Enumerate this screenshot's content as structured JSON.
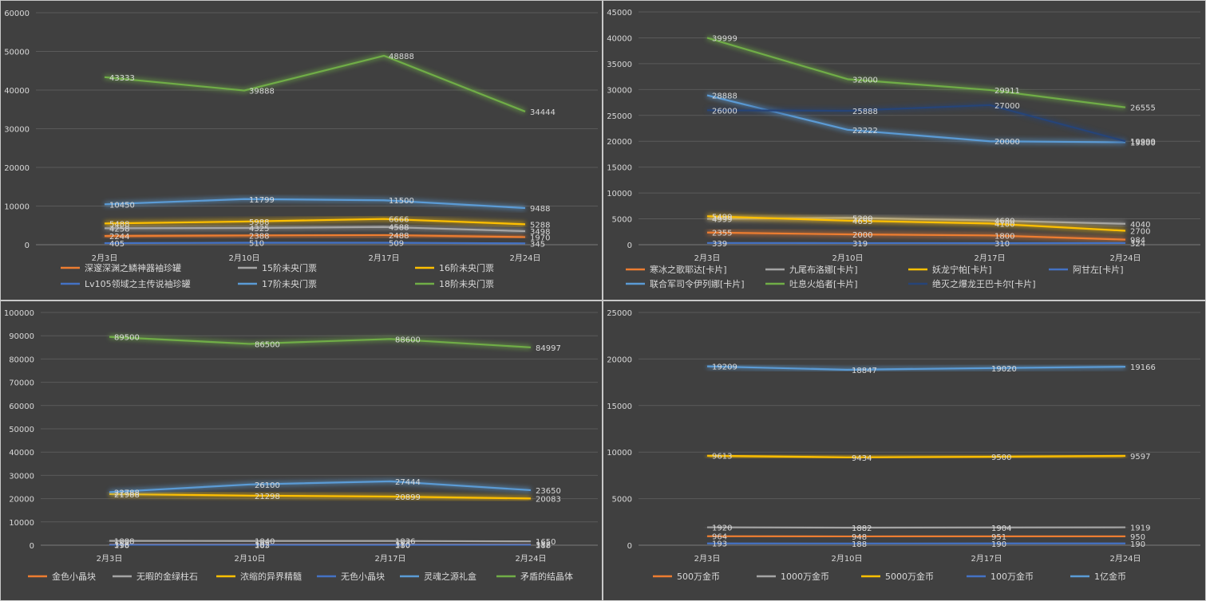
{
  "chart_data": [
    {
      "type": "line",
      "categories": [
        "2月3日",
        "2月10日",
        "2月17日",
        "2月24日"
      ],
      "ylim": [
        0,
        60000
      ],
      "yticks": [
        0,
        10000,
        20000,
        30000,
        40000,
        50000,
        60000
      ],
      "grid": true,
      "legend": "bottom",
      "series": [
        {
          "name": "深邃深渊之鳞神器袖珍罐",
          "color": "#ed7d31",
          "values": [
            2244,
            2388,
            2488,
            1970
          ]
        },
        {
          "name": "15阶未央门票",
          "color": "#a5a5a5",
          "values": [
            4258,
            4325,
            4588,
            3498
          ]
        },
        {
          "name": "16阶未央门票",
          "color": "#ffc000",
          "values": [
            5488,
            5988,
            6666,
            5288
          ]
        },
        {
          "name": "Lv105领域之主传说袖珍罐",
          "color": "#4472c4",
          "values": [
            405,
            510,
            509,
            345
          ]
        },
        {
          "name": "17阶未央门票",
          "color": "#5b9bd5",
          "values": [
            10450,
            11799,
            11500,
            9488
          ]
        },
        {
          "name": "18阶未央门票",
          "color": "#70ad47",
          "values": [
            43333,
            39888,
            48888,
            34444
          ]
        }
      ]
    },
    {
      "type": "line",
      "categories": [
        "2月3日",
        "2月10日",
        "2月17日",
        "2月24日"
      ],
      "ylim": [
        0,
        45000
      ],
      "yticks": [
        0,
        5000,
        10000,
        15000,
        20000,
        25000,
        30000,
        35000,
        40000,
        45000
      ],
      "grid": true,
      "legend": "bottom",
      "series": [
        {
          "name": "寒冰之歌耶达[卡片]",
          "color": "#ed7d31",
          "values": [
            2355,
            2000,
            1800,
            984
          ]
        },
        {
          "name": "九尾布洛娜[卡片]",
          "color": "#a5a5a5",
          "values": [
            4999,
            5200,
            4680,
            4040
          ]
        },
        {
          "name": "妖龙宁帕[卡片]",
          "color": "#ffc000",
          "values": [
            5499,
            4655,
            4100,
            2700
          ]
        },
        {
          "name": "阿甘左[卡片]",
          "color": "#4472c4",
          "values": [
            339,
            319,
            310,
            324
          ]
        },
        {
          "name": "联合军司令伊列娜[卡片]",
          "color": "#5b9bd5",
          "values": [
            28888,
            22222,
            20000,
            19800
          ]
        },
        {
          "name": "吐息火焰者[卡片]",
          "color": "#70ad47",
          "values": [
            39999,
            32000,
            29911,
            26555
          ]
        },
        {
          "name": "绝灭之爆龙王巴卡尔[卡片]",
          "color": "#264478",
          "values": [
            26000,
            25888,
            27000,
            19999
          ]
        }
      ]
    },
    {
      "type": "line",
      "categories": [
        "2月3日",
        "2月10日",
        "2月17日",
        "2月24日"
      ],
      "ylim": [
        0,
        100000
      ],
      "yticks": [
        0,
        10000,
        20000,
        30000,
        40000,
        50000,
        60000,
        70000,
        80000,
        90000,
        100000
      ],
      "grid": true,
      "legend": "bottom",
      "series": [
        {
          "name": "金色小晶块",
          "color": "#ed7d31",
          "values": [
            316,
            302,
            310,
            312
          ]
        },
        {
          "name": "无暇的金绿柱石",
          "color": "#a5a5a5",
          "values": [
            1888,
            1840,
            1836,
            1650
          ]
        },
        {
          "name": "浓缩的异界精髓",
          "color": "#ffc000",
          "values": [
            21988,
            21298,
            20899,
            20083
          ]
        },
        {
          "name": "无色小晶块",
          "color": "#4472c4",
          "values": [
            198,
            185,
            180,
            188
          ]
        },
        {
          "name": "灵魂之源礼盒",
          "color": "#5b9bd5",
          "values": [
            22788,
            26100,
            27444,
            23650
          ]
        },
        {
          "name": "矛盾的结晶体",
          "color": "#70ad47",
          "values": [
            89500,
            86500,
            88600,
            84997
          ]
        }
      ]
    },
    {
      "type": "line",
      "categories": [
        "2月3日",
        "2月10日",
        "2月17日",
        "2月24日"
      ],
      "ylim": [
        0,
        25000
      ],
      "yticks": [
        0,
        5000,
        10000,
        15000,
        20000,
        25000
      ],
      "grid": true,
      "legend": "bottom",
      "series": [
        {
          "name": "500万金币",
          "color": "#ed7d31",
          "values": [
            964,
            948,
            951,
            950
          ]
        },
        {
          "name": "1000万金币",
          "color": "#a5a5a5",
          "values": [
            1920,
            1882,
            1904,
            1919
          ]
        },
        {
          "name": "5000万金币",
          "color": "#ffc000",
          "values": [
            9613,
            9434,
            9500,
            9597
          ]
        },
        {
          "name": "100万金币",
          "color": "#4472c4",
          "values": [
            193,
            188,
            190,
            190
          ]
        },
        {
          "name": "1亿金币",
          "color": "#5b9bd5",
          "values": [
            19209,
            18847,
            19020,
            19166
          ]
        }
      ]
    }
  ]
}
